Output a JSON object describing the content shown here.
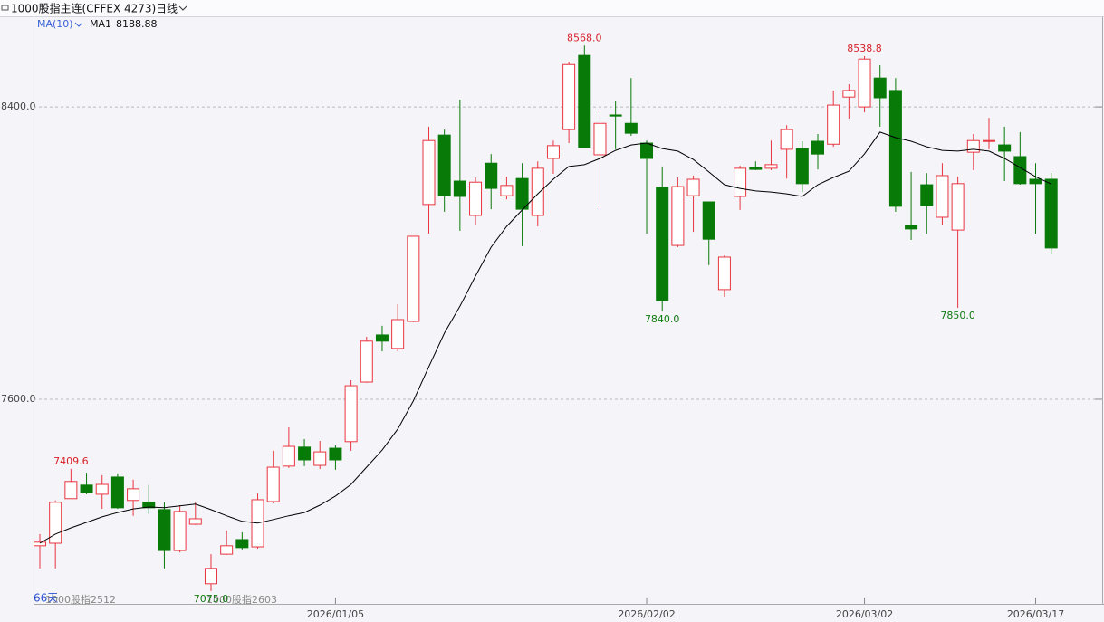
{
  "header": {
    "title": "1000股指主连(CFFEX 4273)",
    "period": "日线",
    "indicator": "MA(10)"
  },
  "chart_data": {
    "type": "candlestick",
    "days_label": "66天",
    "contract_labels": [
      "1000股指2512",
      "1000股指2603"
    ],
    "categories": [
      null,
      null,
      null,
      null,
      null,
      null,
      null,
      null,
      null,
      null,
      null,
      null,
      null,
      null,
      null,
      null,
      null,
      null,
      null,
      "2026/01/05",
      null,
      null,
      null,
      null,
      null,
      null,
      null,
      null,
      null,
      null,
      null,
      null,
      null,
      null,
      null,
      null,
      null,
      null,
      null,
      "2026/02/02",
      null,
      null,
      null,
      null,
      null,
      null,
      null,
      null,
      null,
      null,
      null,
      null,
      null,
      "2026/03/02",
      null,
      null,
      null,
      null,
      null,
      null,
      null,
      null,
      null,
      null,
      "2026/03/17",
      null
    ],
    "open": [
      7199,
      7206,
      7328,
      7365,
      7340,
      7387,
      7323,
      7318,
      7298,
      7186,
      7258,
      7095,
      7176,
      7216,
      7196,
      7320,
      7417,
      7469,
      7419,
      7466,
      7484,
      7647,
      7776,
      7739,
      7813,
      8133,
      8323,
      8197,
      8103,
      8246,
      8157,
      8204,
      8103,
      8259,
      8338,
      8541,
      8269,
      8378,
      8355,
      8301,
      8180,
      8021,
      8157,
      8140,
      7900,
      8155,
      8234,
      8232,
      8284,
      8286,
      8306,
      8298,
      8427,
      8400,
      8479,
      8445,
      8076,
      8187,
      8098,
      8063,
      8276,
      8306,
      8296,
      8264,
      8202,
      8202
    ],
    "high": [
      7231,
      7323,
      7409.6,
      7399,
      7392,
      7397,
      7380,
      7365,
      7318,
      7310,
      7318,
      7176,
      7241,
      7236,
      7342,
      7459,
      7523,
      7491,
      7486,
      7474,
      7652,
      7771,
      7801,
      7860,
      8046,
      8346,
      8338,
      8420,
      8207,
      8271,
      8209,
      8246,
      8251,
      8308,
      8524,
      8568,
      8393,
      8415,
      8479,
      8308,
      8237,
      8207,
      8212,
      8140,
      7994,
      8239,
      8251,
      8308,
      8350,
      8306,
      8326,
      8445,
      8462,
      8538.8,
      8514,
      8479,
      8222,
      8219,
      8246,
      8209,
      8326,
      8370,
      8346,
      8331,
      8246,
      8219
    ],
    "low": [
      7137,
      7137,
      7328,
      7340,
      7300,
      7300,
      7281,
      7286,
      7137,
      7181,
      7256,
      7075,
      7174,
      7189,
      7191,
      7315,
      7412,
      7417,
      7409,
      7407,
      7459,
      7645,
      7731,
      7731,
      7811,
      8053,
      8113,
      8061,
      8078,
      8120,
      8147,
      8019,
      8073,
      8217,
      8301,
      8289,
      8120,
      8284,
      8321,
      8053,
      7840,
      8016,
      8058,
      7967,
      7880,
      8118,
      8227,
      8227,
      8204,
      8167,
      8229,
      8291,
      8368,
      8385,
      8346,
      8113,
      8036,
      8053,
      8078,
      7850,
      8227,
      8284,
      8197,
      8187,
      8053,
      7999
    ],
    "close": [
      7209,
      7318,
      7375,
      7345,
      7367,
      7303,
      7355,
      7303,
      7186,
      7293,
      7273,
      7137,
      7199,
      7194,
      7325,
      7414,
      7471,
      7434,
      7456,
      7434,
      7637,
      7759,
      7759,
      7818,
      8046,
      8308,
      8157,
      8155,
      8194,
      8177,
      8185,
      8120,
      8232,
      8294,
      8516,
      8289,
      8355,
      8375,
      8328,
      8259,
      7870,
      8182,
      8202,
      8038,
      7989,
      8232,
      8229,
      8242,
      8338,
      8190,
      8271,
      8405,
      8445,
      8531,
      8425,
      8128,
      8066,
      8130,
      8212,
      8190,
      8308,
      8308,
      8279,
      8190,
      8190,
      8014
    ],
    "high_labels": [
      null,
      null,
      "7409.6",
      null,
      null,
      null,
      null,
      null,
      null,
      null,
      null,
      null,
      null,
      null,
      null,
      null,
      null,
      null,
      null,
      null,
      null,
      null,
      null,
      null,
      null,
      null,
      null,
      null,
      null,
      null,
      null,
      null,
      null,
      null,
      null,
      "8568.0",
      null,
      null,
      null,
      null,
      null,
      null,
      null,
      null,
      null,
      null,
      null,
      null,
      null,
      null,
      null,
      null,
      null,
      "8538.8",
      null,
      null,
      null,
      null,
      null,
      null,
      null,
      null,
      null,
      null,
      null,
      null
    ],
    "low_labels": [
      null,
      null,
      null,
      null,
      null,
      null,
      null,
      null,
      null,
      null,
      null,
      "7075.0",
      null,
      null,
      null,
      null,
      null,
      null,
      null,
      null,
      null,
      null,
      null,
      null,
      null,
      null,
      null,
      null,
      null,
      null,
      null,
      null,
      null,
      null,
      null,
      null,
      null,
      null,
      null,
      null,
      "7840.0",
      null,
      null,
      null,
      null,
      null,
      null,
      null,
      null,
      null,
      null,
      null,
      null,
      null,
      null,
      null,
      null,
      null,
      null,
      "7850.0",
      null,
      null,
      null,
      null,
      null,
      null
    ],
    "up_color": "#e8353f",
    "down_color": "#087a08",
    "ma": {
      "name": "MA1",
      "value": 8188.88,
      "color": "#000000",
      "values": [
        7206,
        7231,
        7248,
        7263,
        7278,
        7290,
        7300,
        7305,
        7303,
        7308,
        7313,
        7298,
        7281,
        7266,
        7261,
        7271,
        7281,
        7290,
        7310,
        7335,
        7367,
        7414,
        7461,
        7518,
        7595,
        7689,
        7781,
        7855,
        7937,
        8016,
        8073,
        8118,
        8162,
        8202,
        8237,
        8242,
        8259,
        8281,
        8296,
        8301,
        8286,
        8279,
        8256,
        8222,
        8187,
        8177,
        8170,
        8167,
        8162,
        8155,
        8187,
        8207,
        8224,
        8271,
        8331,
        8316,
        8306,
        8291,
        8281,
        8279,
        8284,
        8279,
        8259,
        8234,
        8209,
        8188.88
      ]
    },
    "ylim": [
      7040,
      8643
    ],
    "yticks": [
      {
        "value": 8400,
        "label": "8400.0"
      },
      {
        "value": 7600,
        "label": "7600.0"
      }
    ],
    "grid": true
  }
}
